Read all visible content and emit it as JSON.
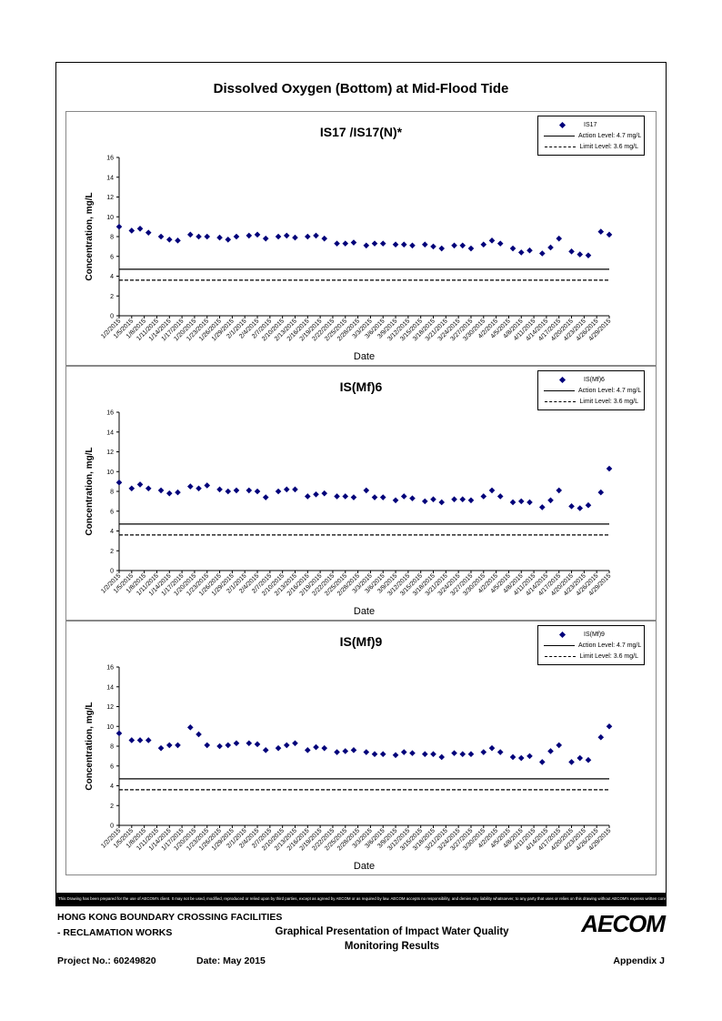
{
  "main_title": "Dissolved Oxygen (Bottom) at Mid-Flood Tide",
  "colors": {
    "marker": "#00007a",
    "line": "#000000"
  },
  "disclaimer": "This Drawing has been prepared for the use of AECOM's client. It may not be used, modified, reproduced or relied upon by third parties, except as agreed by AECOM or as required by law. AECOM accepts no responsibility, and denies any liability whatsoever, to any party that uses or relies on this drawing without AECOM's express written consent.",
  "footer": {
    "line1": "HONG KONG BOUNDARY CROSSING FACILITIES",
    "line2": "- RECLAMATION WORKS",
    "title_line1": "Graphical Presentation of Impact Water Quality",
    "title_line2": "Monitoring Results",
    "logo": "AECOM",
    "project": "Project No.: 60249820",
    "date": "Date: May 2015",
    "appendix": "Appendix J"
  },
  "chart_data": [
    {
      "type": "scatter",
      "title": "IS17 /IS17(N)*",
      "xlabel": "Date",
      "ylabel": "Concentration, mg/L",
      "ylim": [
        0,
        16
      ],
      "yticks": [
        "0",
        "2",
        "4",
        "6",
        "8",
        "10",
        "12",
        "14",
        "16"
      ],
      "xticks": [
        "1/2/2015",
        "1/5/2015",
        "1/8/2015",
        "1/11/2015",
        "1/14/2015",
        "1/17/2015",
        "1/20/2015",
        "1/23/2015",
        "1/26/2015",
        "1/29/2015",
        "2/1/2015",
        "2/4/2015",
        "2/7/2015",
        "2/10/2015",
        "2/13/2015",
        "2/16/2015",
        "2/19/2015",
        "2/22/2015",
        "2/25/2015",
        "2/28/2015",
        "3/3/2015",
        "3/6/2015",
        "3/9/2015",
        "3/12/2015",
        "3/15/2015",
        "3/18/2015",
        "3/21/2015",
        "3/24/2015",
        "3/27/2015",
        "3/30/2015",
        "4/2/2015",
        "4/5/2015",
        "4/8/2015",
        "4/11/2015",
        "4/14/2015",
        "4/17/2015",
        "4/20/2015",
        "4/23/2015",
        "4/26/2015",
        "4/29/2015"
      ],
      "grid": false,
      "legend_position": "top-right",
      "legend": [
        "IS17",
        "Action Level: 4.7 mg/L",
        "Limit Level: 3.6 mg/L"
      ],
      "action_level": 4.7,
      "limit_level": 3.6,
      "series": [
        {
          "name": "IS17",
          "x": [
            "1/2/2015",
            "1/5/2015",
            "1/7/2015",
            "1/9/2015",
            "1/12/2015",
            "1/14/2015",
            "1/16/2015",
            "1/19/2015",
            "1/21/2015",
            "1/23/2015",
            "1/26/2015",
            "1/28/2015",
            "1/30/2015",
            "2/2/2015",
            "2/4/2015",
            "2/6/2015",
            "2/9/2015",
            "2/11/2015",
            "2/13/2015",
            "2/16/2015",
            "2/18/2015",
            "2/20/2015",
            "2/23/2015",
            "2/25/2015",
            "2/27/2015",
            "3/2/2015",
            "3/4/2015",
            "3/6/2015",
            "3/9/2015",
            "3/11/2015",
            "3/13/2015",
            "3/16/2015",
            "3/18/2015",
            "3/20/2015",
            "3/23/2015",
            "3/25/2015",
            "3/27/2015",
            "3/30/2015",
            "4/1/2015",
            "4/3/2015",
            "4/6/2015",
            "4/8/2015",
            "4/10/2015",
            "4/13/2015",
            "4/15/2015",
            "4/17/2015",
            "4/20/2015",
            "4/22/2015",
            "4/24/2015",
            "4/27/2015",
            "4/29/2015"
          ],
          "y": [
            9.0,
            8.6,
            8.8,
            8.4,
            8.0,
            7.7,
            7.6,
            8.2,
            8.0,
            8.0,
            7.9,
            7.7,
            8.0,
            8.1,
            8.2,
            7.8,
            8.0,
            8.1,
            7.9,
            8.0,
            8.1,
            7.8,
            7.3,
            7.3,
            7.4,
            7.1,
            7.3,
            7.3,
            7.2,
            7.2,
            7.1,
            7.2,
            7.0,
            6.8,
            7.1,
            7.1,
            6.8,
            7.2,
            7.6,
            7.3,
            6.8,
            6.4,
            6.6,
            6.3,
            6.9,
            7.8,
            6.5,
            6.2,
            6.1,
            8.5,
            8.2
          ]
        }
      ]
    },
    {
      "type": "scatter",
      "title": "IS(Mf)6",
      "xlabel": "Date",
      "ylabel": "Concentration, mg/L",
      "ylim": [
        0,
        16
      ],
      "yticks": [
        "0",
        "2",
        "4",
        "6",
        "8",
        "10",
        "12",
        "14",
        "16"
      ],
      "xticks": [
        "1/2/2015",
        "1/5/2015",
        "1/8/2015",
        "1/11/2015",
        "1/14/2015",
        "1/17/2015",
        "1/20/2015",
        "1/23/2015",
        "1/26/2015",
        "1/29/2015",
        "2/1/2015",
        "2/4/2015",
        "2/7/2015",
        "2/10/2015",
        "2/13/2015",
        "2/16/2015",
        "2/19/2015",
        "2/22/2015",
        "2/25/2015",
        "2/28/2015",
        "3/3/2015",
        "3/6/2015",
        "3/9/2015",
        "3/12/2015",
        "3/15/2015",
        "3/18/2015",
        "3/21/2015",
        "3/24/2015",
        "3/27/2015",
        "3/30/2015",
        "4/2/2015",
        "4/5/2015",
        "4/8/2015",
        "4/11/2015",
        "4/14/2015",
        "4/17/2015",
        "4/20/2015",
        "4/23/2015",
        "4/26/2015",
        "4/29/2015"
      ],
      "grid": false,
      "legend_position": "top-right",
      "legend": [
        "IS(Mf)6",
        "Action Level: 4.7 mg/L",
        "Limit Level: 3.6 mg/L"
      ],
      "action_level": 4.7,
      "limit_level": 3.6,
      "series": [
        {
          "name": "IS(Mf)6",
          "x": [
            "1/2/2015",
            "1/5/2015",
            "1/7/2015",
            "1/9/2015",
            "1/12/2015",
            "1/14/2015",
            "1/16/2015",
            "1/19/2015",
            "1/21/2015",
            "1/23/2015",
            "1/26/2015",
            "1/28/2015",
            "1/30/2015",
            "2/2/2015",
            "2/4/2015",
            "2/6/2015",
            "2/9/2015",
            "2/11/2015",
            "2/13/2015",
            "2/16/2015",
            "2/18/2015",
            "2/20/2015",
            "2/23/2015",
            "2/25/2015",
            "2/27/2015",
            "3/2/2015",
            "3/4/2015",
            "3/6/2015",
            "3/9/2015",
            "3/11/2015",
            "3/13/2015",
            "3/16/2015",
            "3/18/2015",
            "3/20/2015",
            "3/23/2015",
            "3/25/2015",
            "3/27/2015",
            "3/30/2015",
            "4/1/2015",
            "4/3/2015",
            "4/6/2015",
            "4/8/2015",
            "4/10/2015",
            "4/13/2015",
            "4/15/2015",
            "4/17/2015",
            "4/20/2015",
            "4/22/2015",
            "4/24/2015",
            "4/27/2015",
            "4/29/2015"
          ],
          "y": [
            8.9,
            8.3,
            8.7,
            8.3,
            8.1,
            7.8,
            7.9,
            8.5,
            8.3,
            8.6,
            8.2,
            8.0,
            8.1,
            8.1,
            8.0,
            7.4,
            8.0,
            8.2,
            8.2,
            7.5,
            7.7,
            7.8,
            7.5,
            7.5,
            7.4,
            8.1,
            7.4,
            7.4,
            7.1,
            7.5,
            7.3,
            7.0,
            7.2,
            6.9,
            7.2,
            7.2,
            7.1,
            7.5,
            8.1,
            7.5,
            6.9,
            7.0,
            6.9,
            6.4,
            7.1,
            8.1,
            6.5,
            6.3,
            6.6,
            7.9,
            10.3
          ]
        }
      ]
    },
    {
      "type": "scatter",
      "title": "IS(Mf)9",
      "xlabel": "Date",
      "ylabel": "Concentration, mg/L",
      "ylim": [
        0,
        16
      ],
      "yticks": [
        "0",
        "2",
        "4",
        "6",
        "8",
        "10",
        "12",
        "14",
        "16"
      ],
      "xticks": [
        "1/2/2015",
        "1/5/2015",
        "1/8/2015",
        "1/11/2015",
        "1/14/2015",
        "1/17/2015",
        "1/20/2015",
        "1/23/2015",
        "1/26/2015",
        "1/29/2015",
        "2/1/2015",
        "2/4/2015",
        "2/7/2015",
        "2/10/2015",
        "2/13/2015",
        "2/16/2015",
        "2/19/2015",
        "2/22/2015",
        "2/25/2015",
        "2/28/2015",
        "3/3/2015",
        "3/6/2015",
        "3/9/2015",
        "3/12/2015",
        "3/15/2015",
        "3/18/2015",
        "3/21/2015",
        "3/24/2015",
        "3/27/2015",
        "3/30/2015",
        "4/2/2015",
        "4/5/2015",
        "4/8/2015",
        "4/11/2015",
        "4/14/2015",
        "4/17/2015",
        "4/20/2015",
        "4/23/2015",
        "4/26/2015",
        "4/29/2015"
      ],
      "grid": false,
      "legend_position": "top-right",
      "legend": [
        "IS(Mf)9",
        "Action Level: 4.7 mg/L",
        "Limit Level: 3.6 mg/L"
      ],
      "action_level": 4.7,
      "limit_level": 3.6,
      "series": [
        {
          "name": "IS(Mf)9",
          "x": [
            "1/2/2015",
            "1/5/2015",
            "1/7/2015",
            "1/9/2015",
            "1/12/2015",
            "1/14/2015",
            "1/16/2015",
            "1/19/2015",
            "1/21/2015",
            "1/23/2015",
            "1/26/2015",
            "1/28/2015",
            "1/30/2015",
            "2/2/2015",
            "2/4/2015",
            "2/6/2015",
            "2/9/2015",
            "2/11/2015",
            "2/13/2015",
            "2/16/2015",
            "2/18/2015",
            "2/20/2015",
            "2/23/2015",
            "2/25/2015",
            "2/27/2015",
            "3/2/2015",
            "3/4/2015",
            "3/6/2015",
            "3/9/2015",
            "3/11/2015",
            "3/13/2015",
            "3/16/2015",
            "3/18/2015",
            "3/20/2015",
            "3/23/2015",
            "3/25/2015",
            "3/27/2015",
            "3/30/2015",
            "4/1/2015",
            "4/3/2015",
            "4/6/2015",
            "4/8/2015",
            "4/10/2015",
            "4/13/2015",
            "4/15/2015",
            "4/17/2015",
            "4/20/2015",
            "4/22/2015",
            "4/24/2015",
            "4/27/2015",
            "4/29/2015"
          ],
          "y": [
            9.3,
            8.6,
            8.6,
            8.6,
            7.8,
            8.1,
            8.1,
            9.9,
            9.2,
            8.1,
            8.0,
            8.1,
            8.3,
            8.3,
            8.2,
            7.6,
            7.8,
            8.1,
            8.3,
            7.6,
            7.9,
            7.8,
            7.4,
            7.5,
            7.6,
            7.4,
            7.2,
            7.2,
            7.1,
            7.4,
            7.3,
            7.2,
            7.2,
            6.9,
            7.3,
            7.2,
            7.2,
            7.4,
            7.8,
            7.4,
            6.9,
            6.8,
            7.0,
            6.4,
            7.5,
            8.1,
            6.4,
            6.8,
            6.6,
            8.9,
            10.0
          ]
        }
      ]
    }
  ]
}
